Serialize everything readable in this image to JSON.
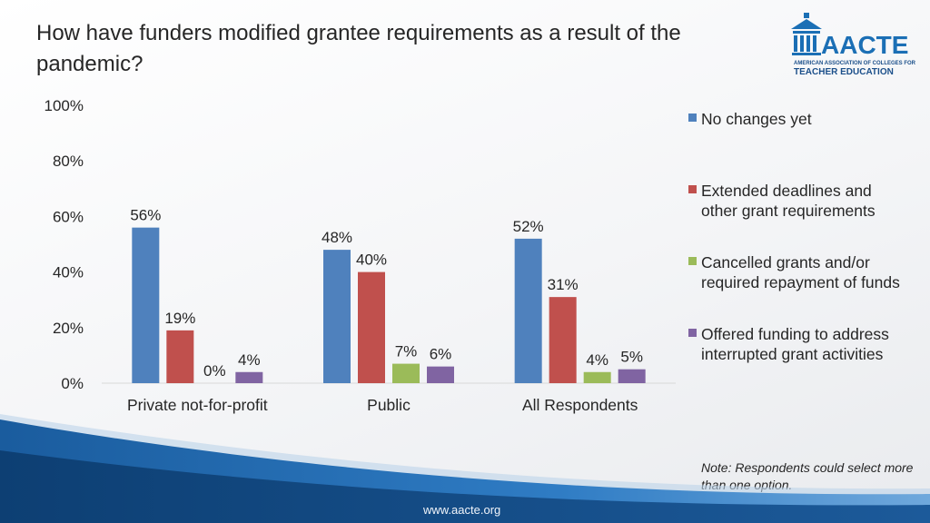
{
  "title": "How have funders modified grantee requirements as a result of the pandemic?",
  "logo": {
    "word": "AACTE",
    "sub": "AMERICAN ASSOCIATION OF COLLEGES FOR",
    "sub2": "TEACHER EDUCATION"
  },
  "note": "Note:  Respondents could select more than one option.",
  "footer": {
    "url": "www.aacte.org"
  },
  "colors": {
    "no_changes": "#4f81bd",
    "extended": "#c0504d",
    "cancelled": "#9bbb59",
    "offered": "#8064a2"
  },
  "chart_data": {
    "type": "bar",
    "categories": [
      "Private not-for-profit",
      "Public",
      "All Respondents"
    ],
    "series": [
      {
        "name": "No changes yet",
        "values": [
          56,
          48,
          52
        ],
        "labels": [
          "56%",
          "48%",
          "52%"
        ],
        "color": "#4f81bd"
      },
      {
        "name": "Extended deadlines and other grant requirements",
        "values": [
          19,
          40,
          31
        ],
        "labels": [
          "19%",
          "40%",
          "31%"
        ],
        "color": "#c0504d"
      },
      {
        "name": "Cancelled grants and/or required repayment of funds",
        "values": [
          0,
          7,
          4
        ],
        "labels": [
          "0%",
          "7%",
          "4%"
        ],
        "color": "#9bbb59"
      },
      {
        "name": "Offered funding to address interrupted grant activities",
        "values": [
          4,
          6,
          5
        ],
        "labels": [
          "4%",
          "6%",
          "5%"
        ],
        "color": "#8064a2"
      }
    ],
    "yticks": [
      0,
      20,
      40,
      60,
      80,
      100
    ],
    "ytick_labels": [
      "0%",
      "20%",
      "40%",
      "60%",
      "80%",
      "100%"
    ],
    "ylim": [
      0,
      100
    ],
    "grid": false,
    "legend_position": "right"
  }
}
